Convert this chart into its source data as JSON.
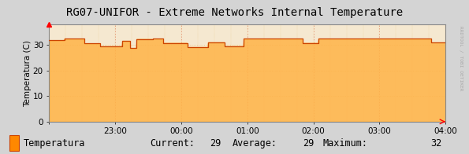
{
  "title": "RG07-UNIFOR - Extreme Networks Internal Temperature",
  "ylabel": "Temperatura (C)",
  "outer_bg": "#d4d4d4",
  "plot_bg_color": "#f5e8d0",
  "line_color": "#cc4400",
  "fill_color": "#ffb347",
  "grid_h_color": "#e8c080",
  "grid_v_color": "#e08060",
  "ylim": [
    0,
    38
  ],
  "ytick_vals": [
    0,
    10,
    20,
    30
  ],
  "x_labels": [
    "23:00",
    "00:00",
    "01:00",
    "02:00",
    "03:00",
    "04:00"
  ],
  "legend_label": "Temperatura",
  "legend_current": 29,
  "legend_average": 29,
  "legend_maximum": 32,
  "watermark": "RRDTOOL / TOBI OETIKER",
  "title_fontsize": 10,
  "axis_fontsize": 7.5,
  "legend_fontsize": 8.5,
  "n_points": 500,
  "base_temp": 27.0,
  "seed": 12
}
